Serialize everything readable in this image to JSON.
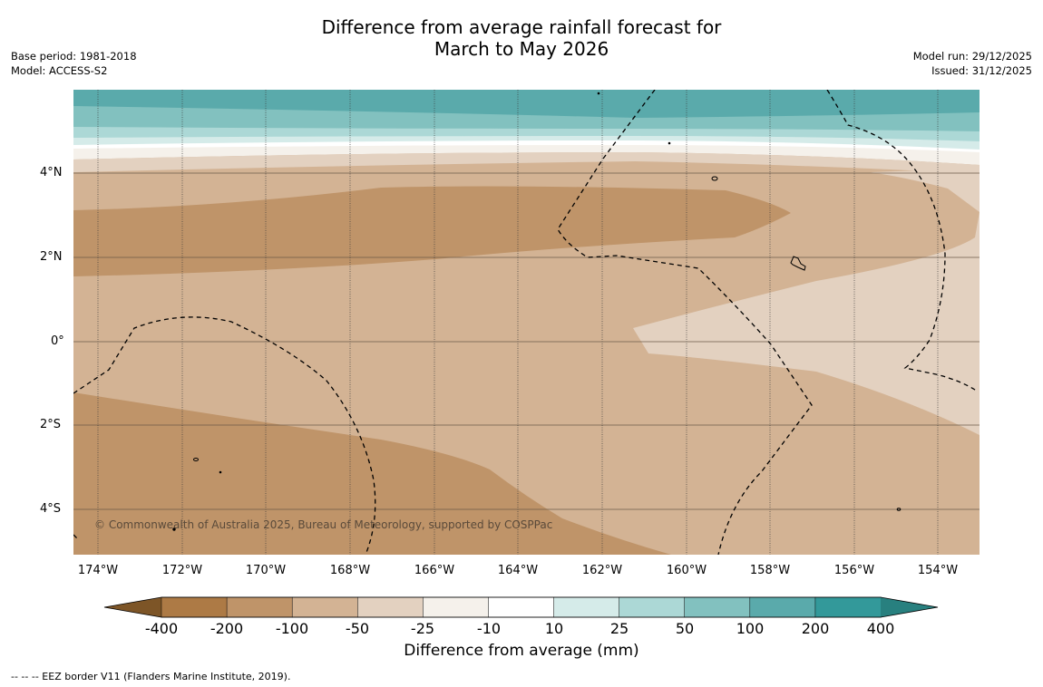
{
  "title": {
    "line1": "Difference from average rainfall forecast for",
    "line2": "March to May 2026"
  },
  "meta_left": {
    "base_period": "Base period: 1981-2018",
    "model": "Model: ACCESS-S2"
  },
  "meta_right": {
    "model_run": "Model run: 29/12/2025",
    "issued": "Issued: 31/12/2025"
  },
  "copyright": "© Commonwealth of Australia 2025, Bureau of Meteorology, supported by COSPPac",
  "footer": "--  --  -- EEZ border V11 (Flanders Marine Institute, 2019).",
  "map": {
    "lat_labels": [
      "4°N",
      "2°N",
      "0°",
      "2°S",
      "4°S"
    ],
    "lon_labels": [
      "174°W",
      "172°W",
      "170°W",
      "168°W",
      "166°W",
      "164°W",
      "162°W",
      "160°W",
      "158°W",
      "156°W",
      "154°W"
    ]
  },
  "colorbar": {
    "label": "Difference from average (mm)",
    "ticks": [
      "-400",
      "-200",
      "-100",
      "-50",
      "-25",
      "-10",
      "10",
      "25",
      "50",
      "100",
      "200",
      "400"
    ],
    "colors": [
      "#7d5527",
      "#ad7a45",
      "#bf9469",
      "#d3b394",
      "#e3d1c0",
      "#f5f1eb",
      "#ffffff",
      "#d5ebe9",
      "#acd8d6",
      "#82c1bf",
      "#5aaaab",
      "#33999a",
      "#28807f"
    ]
  }
}
